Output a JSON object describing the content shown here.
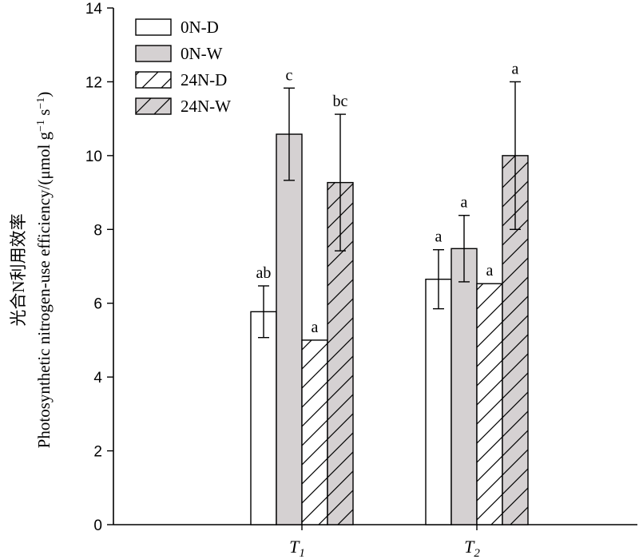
{
  "chart_data": {
    "type": "bar",
    "categories": [
      "T1",
      "T2"
    ],
    "category_labels": [
      {
        "main": "T",
        "sub": "1"
      },
      {
        "main": "T",
        "sub": "2"
      }
    ],
    "ylabel_cn": "光合N利用效率",
    "ylabel_en_prefix": "Photosynthetic nitrogen-use efficiency/(μmol g",
    "ylabel_sup1": "−1",
    "ylabel_mid": " s",
    "ylabel_sup2": "−1",
    "ylabel_suffix": ")",
    "ylim": [
      0,
      14
    ],
    "yticks": [
      0,
      2,
      4,
      6,
      8,
      10,
      12,
      14
    ],
    "legend_position": "top-left",
    "grid": false,
    "series": [
      {
        "name": "0N-D",
        "style": "white",
        "values": [
          5.77,
          6.65
        ],
        "errors": [
          0.7,
          0.8
        ],
        "letters": [
          "ab",
          "a"
        ]
      },
      {
        "name": "0N-W",
        "style": "gray",
        "values": [
          10.58,
          7.48
        ],
        "errors": [
          1.25,
          0.9
        ],
        "letters": [
          "c",
          "a"
        ]
      },
      {
        "name": "24N-D",
        "style": "white-hatch",
        "values": [
          5.0,
          6.53
        ],
        "errors": [
          0,
          0
        ],
        "letters": [
          "a",
          "a"
        ]
      },
      {
        "name": "24N-W",
        "style": "gray-hatch",
        "values": [
          9.27,
          10.0
        ],
        "errors": [
          1.85,
          2.0
        ],
        "letters": [
          "bc",
          "a"
        ]
      }
    ],
    "colors": {
      "gray": "#d5d1d2",
      "white": "#ffffff",
      "line": "#000000"
    }
  }
}
